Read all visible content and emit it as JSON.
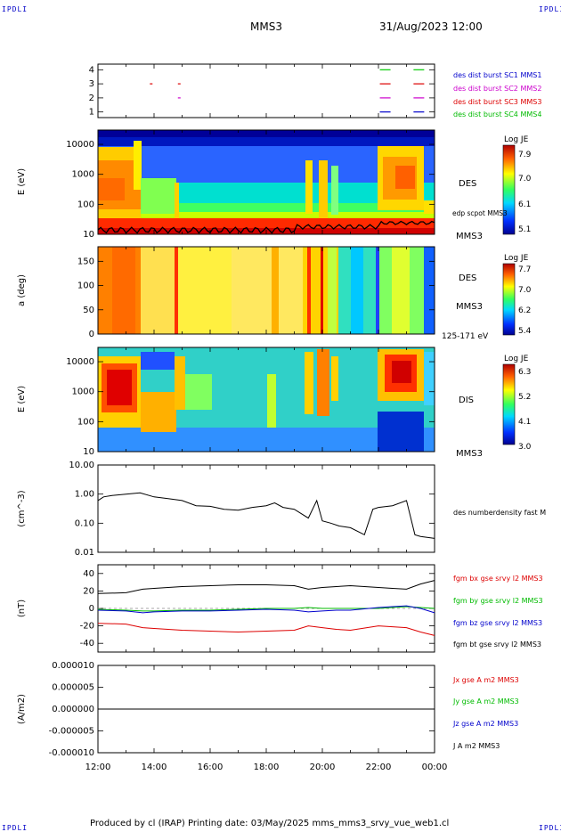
{
  "corners": {
    "tl": "IPDLI",
    "tr": "IPDLI",
    "bl": "IPDLI",
    "br": "IPDLI"
  },
  "header": {
    "spacecraft": "MMS3",
    "datetime": "31/Aug/2023 12:00"
  },
  "footer": {
    "text": "Produced by cl (IRAP)   Printing date: 03/May/2025   mms_mms3_srvy_vue_web1.cl"
  },
  "x_axis": {
    "ticks": [
      "12:00",
      "14:00",
      "16:00",
      "18:00",
      "20:00",
      "22:00",
      "00:00"
    ]
  },
  "colors": {
    "mms1": "#0000cc",
    "mms2": "#cc00cc",
    "mms3": "#dd0000",
    "mms4": "#00cc00",
    "bx": "#dd0000",
    "by": "#00bb00",
    "bz": "#0000cc",
    "bt": "#000000"
  },
  "panels": {
    "burst": {
      "ticks": [
        "4",
        "3",
        "2",
        "1"
      ],
      "legend": [
        "des dist burst SC1 MMS1",
        "des dist burst SC2 MMS2",
        "des dist burst SC3 MMS3",
        "des dist burst SC4 MMS4"
      ]
    },
    "des_e": {
      "ylabel": "E (eV)",
      "ticks": [
        "10000",
        "1000",
        "100",
        "10"
      ],
      "name": "DES",
      "extra": "edp scpot MMS3",
      "sc": "MMS3",
      "cbar_title": "Log JE",
      "cbar_ticks": [
        "7.9",
        "7.0",
        "6.1",
        "5.1"
      ]
    },
    "des_pa": {
      "ylabel": "a (deg)",
      "ticks": [
        "150",
        "100",
        "50",
        "0"
      ],
      "name": "DES",
      "sc": "MMS3",
      "energy": "125-171 eV",
      "cbar_title": "Log JE",
      "cbar_ticks": [
        "7.7",
        "7.0",
        "6.2",
        "5.4"
      ]
    },
    "dis_e": {
      "ylabel": "E (eV)",
      "ticks": [
        "10000",
        "1000",
        "100",
        "10"
      ],
      "name": "DIS",
      "sc": "MMS3",
      "cbar_title": "Log JE",
      "cbar_ticks": [
        "6.3",
        "5.2",
        "4.1",
        "3.0"
      ]
    },
    "density": {
      "ylabel": "(cm^-3)",
      "ticks": [
        "10.00",
        "1.00",
        "0.10",
        "0.01"
      ],
      "legend": "des numberdensity fast M"
    },
    "fgm": {
      "ylabel": "(nT)",
      "ticks": [
        "40",
        "20",
        "0",
        "-20",
        "-40"
      ],
      "legend": [
        "fgm bx gse srvy l2 MMS3",
        "fgm by gse srvy l2 MMS3",
        "fgm bz gse srvy l2 MMS3",
        "fgm bt gse srvy l2 MMS3"
      ]
    },
    "current": {
      "ylabel": "(A/m2)",
      "ticks": [
        "0.000010",
        "0.000005",
        "0.000000",
        "-0.000005",
        "-0.000010"
      ],
      "legend": [
        "Jx gse A m2 MMS3",
        "Jy gse A m2 MMS3",
        "Jz gse A m2 MMS3",
        "J A m2 MMS3"
      ]
    }
  },
  "chart_data": [
    {
      "type": "scatter",
      "title": "burst intervals",
      "x": [
        13.85,
        14.85,
        14.85,
        22.05,
        22.05,
        22.05,
        22.05,
        23.25,
        23.25,
        23.25,
        23.25
      ],
      "y": [
        3,
        3,
        2,
        4,
        3,
        2,
        1,
        4,
        3,
        2,
        1
      ],
      "ylim": [
        0.6,
        4.4
      ]
    },
    {
      "type": "heatmap",
      "name": "DES energy",
      "ylim": [
        10,
        30000
      ],
      "colorbar": [
        5.1,
        7.9
      ]
    },
    {
      "type": "heatmap",
      "name": "DES pitch angle",
      "ylim": [
        0,
        180
      ],
      "colorbar": [
        5.4,
        7.7
      ]
    },
    {
      "type": "heatmap",
      "name": "DIS energy",
      "ylim": [
        10,
        30000
      ],
      "colorbar": [
        3.0,
        6.3
      ]
    },
    {
      "type": "line",
      "name": "des numberdensity fast M",
      "x": [
        12.0,
        12.2,
        12.5,
        13.0,
        13.5,
        14.0,
        14.5,
        15.0,
        15.5,
        16.0,
        16.5,
        17.0,
        17.5,
        18.0,
        18.3,
        18.6,
        19.0,
        19.5,
        19.8,
        20.0,
        20.3,
        20.6,
        21.0,
        21.5,
        21.8,
        22.0,
        22.5,
        23.0,
        23.3,
        23.5,
        24.0
      ],
      "y": [
        0.6,
        0.8,
        0.9,
        1.0,
        1.1,
        0.8,
        0.7,
        0.6,
        0.4,
        0.38,
        0.3,
        0.28,
        0.35,
        0.4,
        0.5,
        0.35,
        0.3,
        0.15,
        0.6,
        0.12,
        0.1,
        0.08,
        0.07,
        0.04,
        0.3,
        0.35,
        0.4,
        0.6,
        0.04,
        0.035,
        0.03
      ],
      "ylim": [
        0.01,
        10
      ]
    },
    {
      "type": "line",
      "name": "fgm",
      "x": [
        12.0,
        13.0,
        13.6,
        14.0,
        15.0,
        16.0,
        17.0,
        18.0,
        19.0,
        19.5,
        20.0,
        20.5,
        21.0,
        22.0,
        22.5,
        23.0,
        23.5,
        24.0
      ],
      "series": [
        {
          "name": "fgm bt gse srvy l2 MMS3",
          "values": [
            17,
            18,
            22,
            23,
            25,
            26,
            27,
            27,
            26,
            22,
            24,
            25,
            26,
            24,
            23,
            22,
            28,
            32
          ]
        },
        {
          "name": "fgm bx gse srvy l2 MMS3",
          "values": [
            -17,
            -18,
            -22,
            -23,
            -25,
            -26,
            -27,
            -26,
            -25,
            -20,
            -22,
            -24,
            -25,
            -20,
            -21,
            -22,
            -27,
            -31
          ]
        },
        {
          "name": "fgm by gse srvy l2 MMS3",
          "values": [
            -1,
            -2,
            -3,
            -3,
            -2,
            -2,
            -1,
            0,
            0,
            1,
            0,
            0,
            0,
            0,
            1,
            2,
            1,
            0
          ]
        },
        {
          "name": "fgm bz gse srvy l2 MMS3",
          "values": [
            -2,
            -3,
            -5,
            -4,
            -3,
            -3,
            -2,
            -1,
            -2,
            -4,
            -3,
            -2,
            -2,
            1,
            2,
            3,
            0,
            -5
          ]
        }
      ],
      "ylim": [
        -50,
        50
      ]
    },
    {
      "type": "line",
      "name": "current",
      "x": [
        12,
        24
      ],
      "series": [
        {
          "name": "J A m2 MMS3",
          "values": [
            0,
            0
          ]
        }
      ],
      "ylim": [
        -1e-05,
        1e-05
      ]
    }
  ]
}
